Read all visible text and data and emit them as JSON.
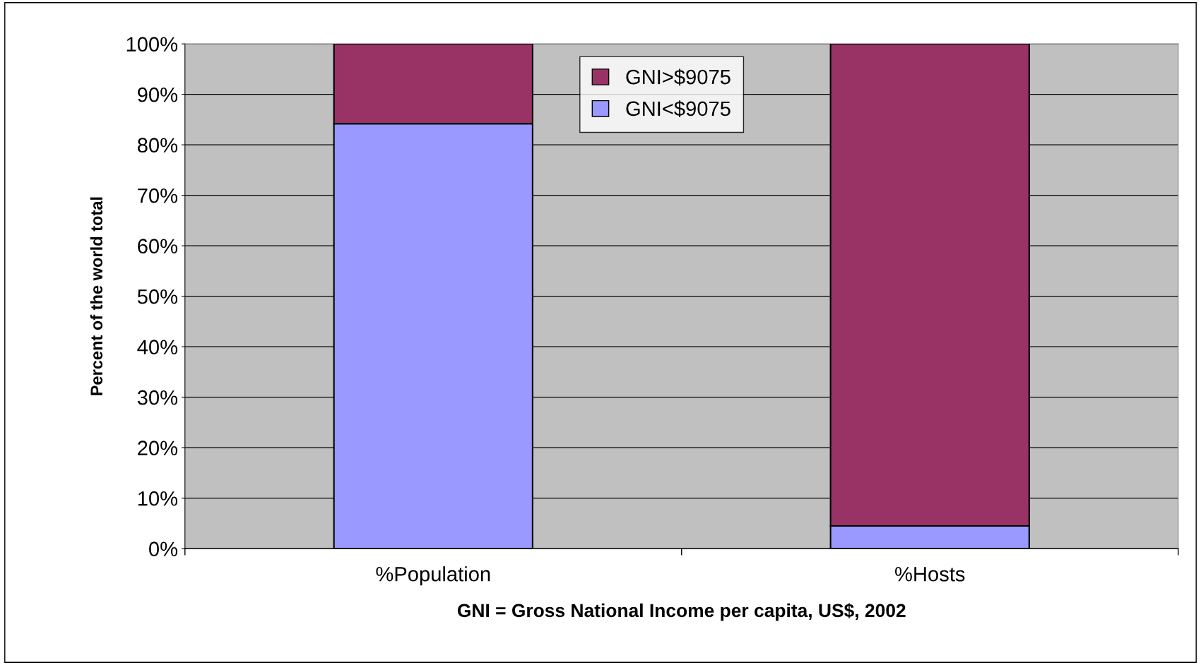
{
  "chart_data": {
    "type": "bar",
    "stacked": true,
    "categories": [
      "%Population",
      "%Hosts"
    ],
    "series": [
      {
        "name": "GNI<$9075",
        "color": "#9999ff",
        "values": [
          84.2,
          4.5
        ]
      },
      {
        "name": "GNI>$9075",
        "color": "#993366",
        "values": [
          15.8,
          95.5
        ]
      }
    ],
    "ylabel": "Percent of the world total",
    "xlabel": "GNI = Gross National Income per capita, US$, 2002",
    "ylim": [
      0,
      100
    ],
    "yticks": [
      {
        "value": 0,
        "label": "0%"
      },
      {
        "value": 10,
        "label": "10%"
      },
      {
        "value": 20,
        "label": "20%"
      },
      {
        "value": 30,
        "label": "30%"
      },
      {
        "value": 40,
        "label": "40%"
      },
      {
        "value": 50,
        "label": "50%"
      },
      {
        "value": 60,
        "label": "60%"
      },
      {
        "value": 70,
        "label": "70%"
      },
      {
        "value": 80,
        "label": "80%"
      },
      {
        "value": 90,
        "label": "90%"
      },
      {
        "value": 100,
        "label": "100%"
      }
    ],
    "grid": "y",
    "legend": "top"
  }
}
